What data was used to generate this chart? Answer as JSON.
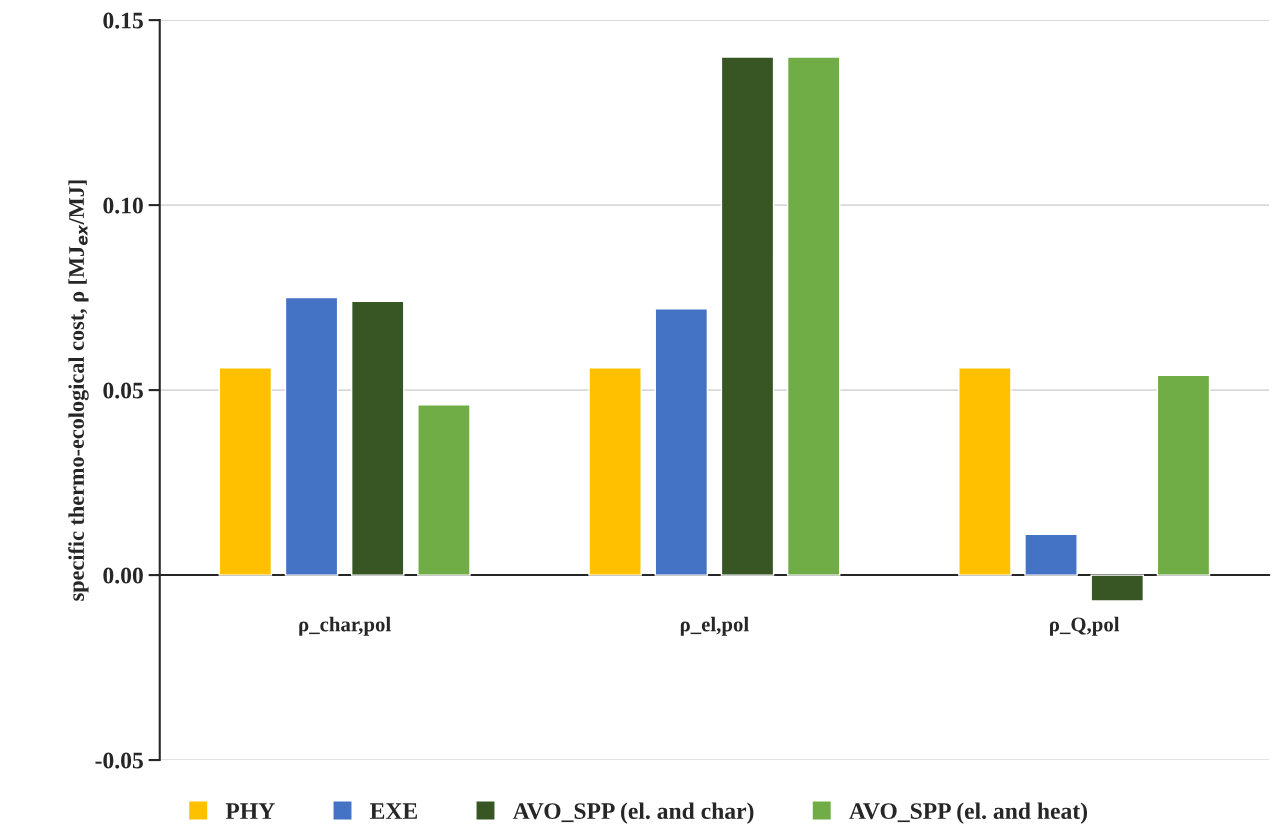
{
  "chart_data": {
    "type": "bar",
    "ylabel": "specific thermo-ecological cost, ρ [MJ$_{ex}$/MJ]",
    "categories": [
      "ρ_char,pol",
      "ρ_el,pol",
      "ρ_Q,pol"
    ],
    "series": [
      {
        "name": "PHY",
        "color": "#ffc000",
        "values": [
          0.056,
          0.056,
          0.056
        ]
      },
      {
        "name": "EXE",
        "color": "#4472c4",
        "values": [
          0.075,
          0.072,
          0.011
        ]
      },
      {
        "name": "AVO_SPP (el. and char)",
        "color": "#375623",
        "values": [
          0.074,
          0.14,
          -0.007
        ]
      },
      {
        "name": "AVO_SPP (el. and heat)",
        "color": "#70ad47",
        "values": [
          0.046,
          0.14,
          0.054
        ]
      }
    ],
    "ylim": [
      -0.05,
      0.15
    ],
    "yticks": [
      {
        "value": -0.05,
        "label": "-0.05"
      },
      {
        "value": 0,
        "label": "0.00"
      },
      {
        "value": 0.05,
        "label": "0.05"
      },
      {
        "value": 0.1,
        "label": "0.10"
      },
      {
        "value": 0.15,
        "label": "0.15"
      }
    ],
    "grid": "y",
    "legend": "bottom"
  }
}
